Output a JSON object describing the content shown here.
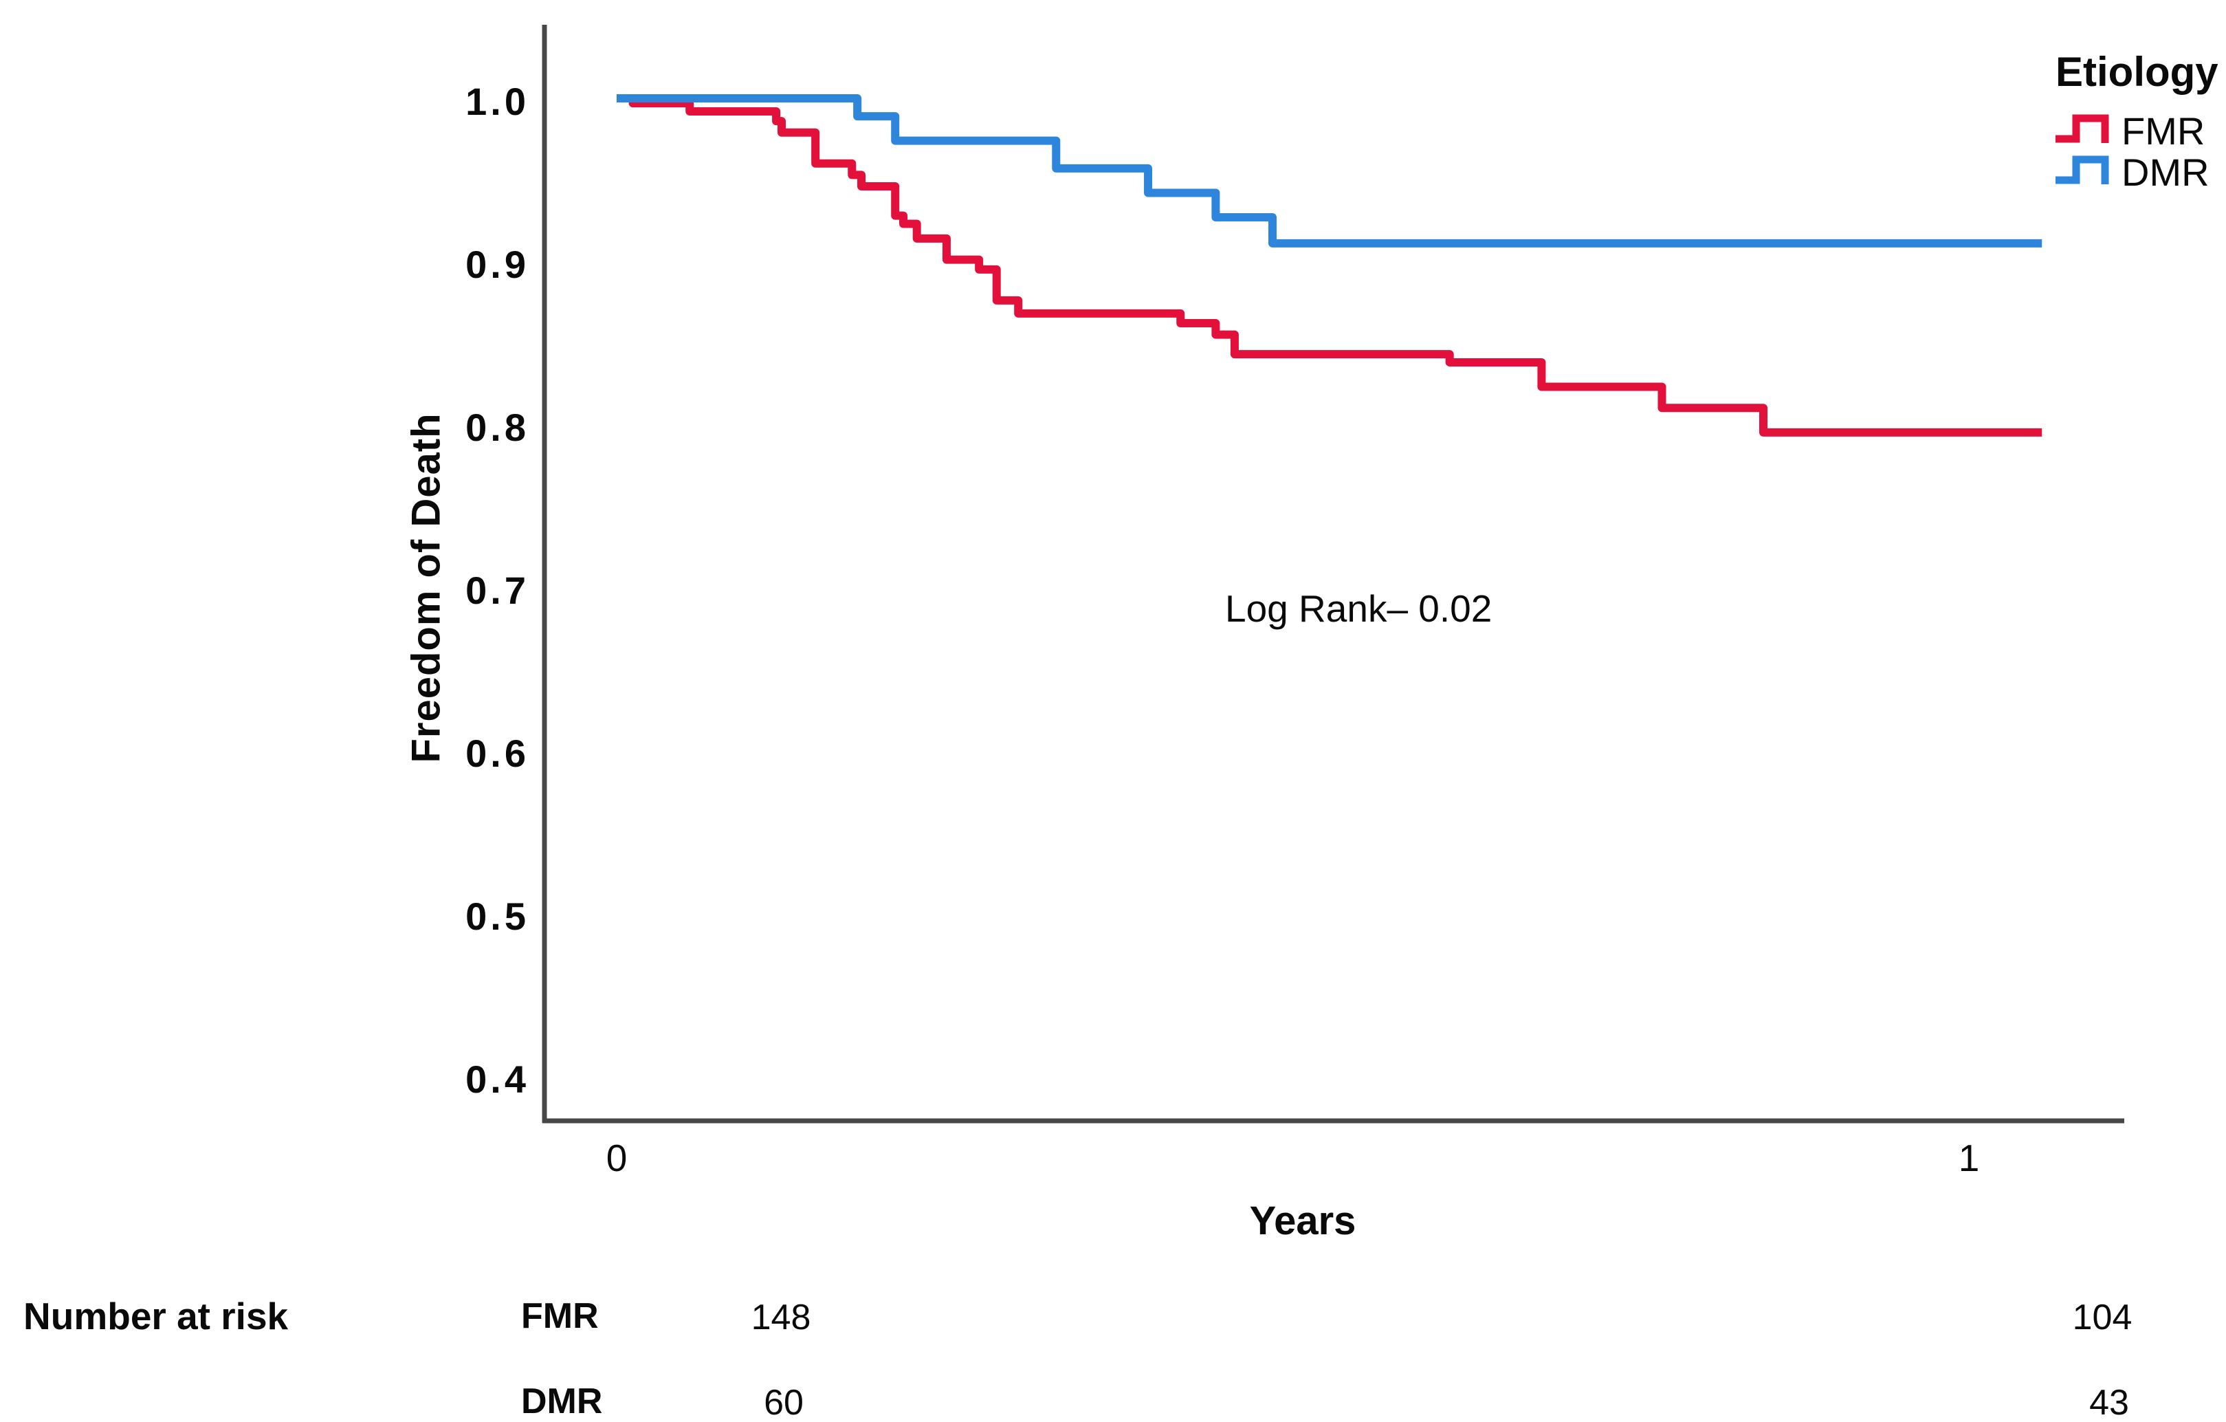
{
  "chart_data": {
    "type": "line",
    "subtype": "kaplan-meier-step",
    "title": "",
    "xlabel": "Years",
    "ylabel": "Freedom of Death",
    "x_tick_labels": [
      "0",
      "1"
    ],
    "x_tick_values": [
      0,
      1
    ],
    "y_tick_labels": [
      "1.0",
      "0.9",
      "0.8",
      "0.7",
      "0.6",
      "0.5",
      "0.4"
    ],
    "y_tick_values": [
      1.0,
      0.9,
      0.8,
      0.7,
      0.6,
      0.5,
      0.4
    ],
    "xlim": [
      0,
      1.1
    ],
    "ylim": [
      0.37,
      1.02
    ],
    "grid": false,
    "legend_position": "top-right",
    "legend_title": "Etiology",
    "annotation": "Log Rank– 0.02",
    "series": [
      {
        "name": "FMR",
        "color": "#E4103C",
        "start": [
          0,
          1.0
        ],
        "steps": [
          [
            0.012,
            0.997
          ],
          [
            0.054,
            0.992
          ],
          [
            0.118,
            0.986
          ],
          [
            0.122,
            0.979
          ],
          [
            0.147,
            0.96
          ],
          [
            0.174,
            0.953
          ],
          [
            0.181,
            0.946
          ],
          [
            0.206,
            0.928
          ],
          [
            0.212,
            0.923
          ],
          [
            0.222,
            0.914
          ],
          [
            0.244,
            0.901
          ],
          [
            0.268,
            0.895
          ],
          [
            0.281,
            0.876
          ],
          [
            0.297,
            0.868
          ],
          [
            0.417,
            0.862
          ],
          [
            0.443,
            0.855
          ],
          [
            0.457,
            0.843
          ],
          [
            0.616,
            0.838
          ],
          [
            0.684,
            0.823
          ],
          [
            0.773,
            0.81
          ],
          [
            0.848,
            0.795
          ]
        ],
        "end_x": 1.054,
        "final_value": 0.795
      },
      {
        "name": "DMR",
        "color": "#2E86DC",
        "start": [
          0,
          1.0
        ],
        "steps": [
          [
            0.178,
            0.989
          ],
          [
            0.206,
            0.974
          ],
          [
            0.325,
            0.957
          ],
          [
            0.393,
            0.942
          ],
          [
            0.443,
            0.927
          ],
          [
            0.485,
            0.911
          ]
        ],
        "end_x": 1.054,
        "final_value": 0.911
      }
    ]
  },
  "risk_table": {
    "title": "Number at risk",
    "time_points": [
      0,
      1
    ],
    "rows": [
      {
        "label": "FMR",
        "counts": [
          "148",
          "104"
        ]
      },
      {
        "label": "DMR",
        "counts": [
          "60",
          "43"
        ]
      }
    ]
  }
}
